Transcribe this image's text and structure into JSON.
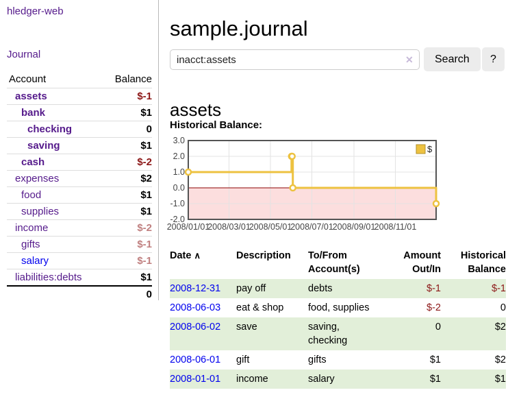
{
  "app_title": "hledger-web",
  "nav": {
    "journal": "Journal"
  },
  "sidebar": {
    "headers": {
      "account": "Account",
      "balance": "Balance"
    },
    "accounts": [
      {
        "name": "assets",
        "balance": "$-1",
        "indent": 1,
        "bold": true,
        "balance_style": "neg-strong"
      },
      {
        "name": "bank",
        "balance": "$1",
        "indent": 2,
        "bold": true,
        "balance_style": "pos"
      },
      {
        "name": "checking",
        "balance": "0",
        "indent": 3,
        "bold": true,
        "balance_style": "pos"
      },
      {
        "name": "saving",
        "balance": "$1",
        "indent": 3,
        "bold": true,
        "balance_style": "pos"
      },
      {
        "name": "cash",
        "balance": "$-2",
        "indent": 2,
        "bold": true,
        "balance_style": "neg-strong"
      },
      {
        "name": "expenses",
        "balance": "$2",
        "indent": 1,
        "bold": false,
        "balance_style": "pos"
      },
      {
        "name": "food",
        "balance": "$1",
        "indent": 2,
        "bold": false,
        "balance_style": "pos"
      },
      {
        "name": "supplies",
        "balance": "$1",
        "indent": 2,
        "bold": false,
        "balance_style": "pos"
      },
      {
        "name": "income",
        "balance": "$-2",
        "indent": 1,
        "bold": false,
        "balance_style": "neg-muted"
      },
      {
        "name": "gifts",
        "balance": "$-1",
        "indent": 2,
        "bold": false,
        "balance_style": "neg-muted"
      },
      {
        "name": "salary",
        "balance": "$-1",
        "indent": 2,
        "bold": false,
        "balance_style": "neg-muted",
        "link_style": "blue"
      },
      {
        "name": "liabilities:debts",
        "balance": "$1",
        "indent": 1,
        "bold": false,
        "balance_style": "pos"
      }
    ],
    "total": "0"
  },
  "header": {
    "title": "sample.journal"
  },
  "search": {
    "query": "inacct:assets",
    "clear_icon": "✕",
    "button": "Search",
    "help": "?"
  },
  "account_page": {
    "heading": "assets",
    "chart_title": "Historical Balance:"
  },
  "chart_data": {
    "type": "line",
    "style": "step",
    "title": "Historical Balance",
    "series": [
      {
        "name": "$",
        "color": "#EDC240",
        "points": [
          [
            "2008-01-01",
            1.0
          ],
          [
            "2008-06-01",
            2.0
          ],
          [
            "2008-06-02",
            2.0
          ],
          [
            "2008-06-03",
            0.0
          ],
          [
            "2008-12-31",
            -1.0
          ]
        ]
      }
    ],
    "ylim": [
      -2.0,
      3.0
    ],
    "yticks": [
      3.0,
      2.0,
      1.0,
      0.0,
      -1.0,
      -2.0
    ],
    "xticks": [
      "2008/01/01",
      "2008/03/01",
      "2008/05/01",
      "2008/07/01",
      "2008/09/01",
      "2008/11/01"
    ],
    "xrange": [
      "2008-01-01",
      "2008-12-31"
    ],
    "legend": "$",
    "legend_position": "top-right",
    "grid": true,
    "negative_region_color": "#fcdede",
    "zero_line_color": "#8b0000",
    "grid_color": "#e3e3e3",
    "border_color": "#545454",
    "tick_text_color": "#444444"
  },
  "register": {
    "headers": {
      "date": "Date",
      "sort_icon": "∧",
      "description": "Description",
      "accounts": "To/From Account(s)",
      "amount": "Amount Out/In",
      "balance": "Historical Balance"
    },
    "rows": [
      {
        "date": "2008-12-31",
        "description": "pay off",
        "accounts": [
          "debts"
        ],
        "amount": "$-1",
        "amount_style": "neg",
        "balance": "$-1",
        "balance_style": "neg",
        "shaded": true
      },
      {
        "date": "2008-06-03",
        "description": "eat & shop",
        "accounts": [
          "food",
          "supplies"
        ],
        "amount": "$-2",
        "amount_style": "neg",
        "balance": "0",
        "balance_style": "pos",
        "shaded": false
      },
      {
        "date": "2008-06-02",
        "description": "save",
        "accounts": [
          "saving",
          "checking"
        ],
        "amount": "0",
        "amount_style": "pos",
        "balance": "$2",
        "balance_style": "pos",
        "shaded": true
      },
      {
        "date": "2008-06-01",
        "description": "gift",
        "accounts": [
          "gifts"
        ],
        "amount": "$1",
        "amount_style": "pos",
        "balance": "$2",
        "balance_style": "pos",
        "shaded": false
      },
      {
        "date": "2008-01-01",
        "description": "income",
        "accounts": [
          "salary"
        ],
        "amount": "$1",
        "amount_style": "pos",
        "balance": "$1",
        "balance_style": "pos",
        "shaded": true
      }
    ]
  },
  "colors": {
    "link_purple": "#551A8B",
    "link_blue": "#0000EE",
    "negative_strong": "#8C1717",
    "negative_muted": "#C08080",
    "row_stripe": "#e2efd9",
    "chart_line": "#EDC240"
  }
}
